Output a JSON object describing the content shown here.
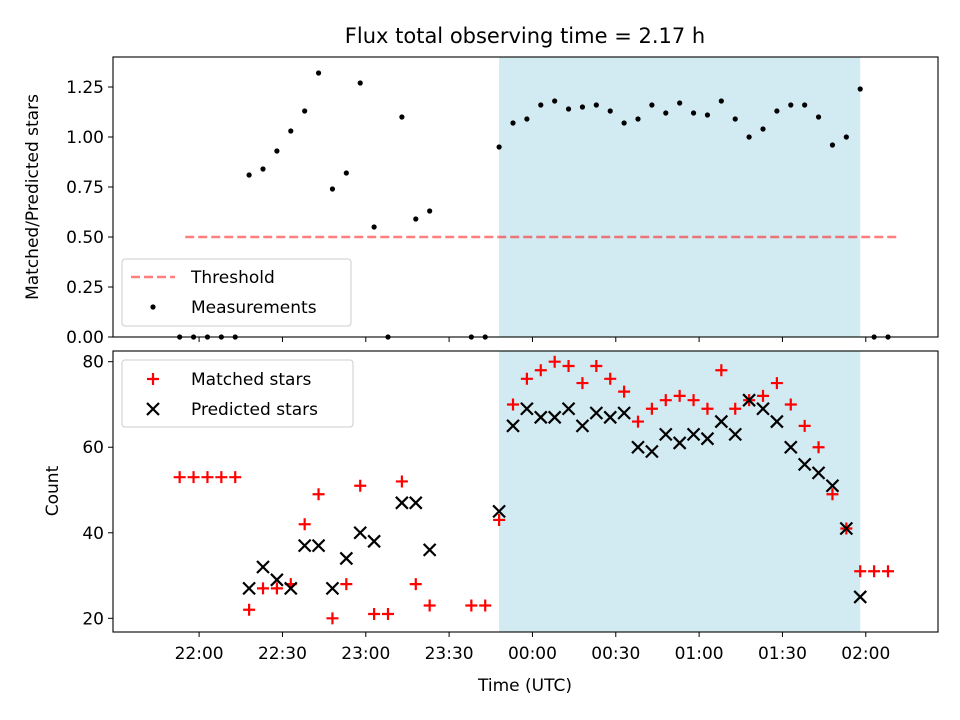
{
  "chart_data": [
    {
      "type": "scatter",
      "title": "Flux total observing time = 2.17 h",
      "xlabel": "",
      "ylabel": "Matched/Predicted stars",
      "ylim": [
        0,
        1.4
      ],
      "yticks": [
        "0.00",
        "0.25",
        "0.50",
        "0.75",
        "1.00",
        "1.25"
      ],
      "shaded_region": {
        "x_start": "23:48",
        "x_end": "01:58",
        "color": "#add8e6"
      },
      "threshold": {
        "name": "Threshold",
        "value": 0.5,
        "x_start": "21:55",
        "x_end": "02:12",
        "color": "#ff0000"
      },
      "legend": {
        "position": "bottom-left",
        "entries": [
          "Threshold",
          "Measurements"
        ]
      },
      "series": [
        {
          "name": "Measurements",
          "marker": "dot",
          "color": "#000000",
          "points": [
            [
              "21:53",
              0
            ],
            [
              "21:58",
              0
            ],
            [
              "22:03",
              0
            ],
            [
              "22:08",
              0
            ],
            [
              "22:13",
              0
            ],
            [
              "22:18",
              0.81
            ],
            [
              "22:23",
              0.84
            ],
            [
              "22:28",
              0.93
            ],
            [
              "22:33",
              1.03
            ],
            [
              "22:38",
              1.13
            ],
            [
              "22:43",
              1.32
            ],
            [
              "22:48",
              0.74
            ],
            [
              "22:53",
              0.82
            ],
            [
              "22:58",
              1.27
            ],
            [
              "23:03",
              0.55
            ],
            [
              "23:08",
              0
            ],
            [
              "23:13",
              1.1
            ],
            [
              "23:18",
              0.59
            ],
            [
              "23:23",
              0.63
            ],
            [
              "23:38",
              0
            ],
            [
              "23:43",
              0
            ],
            [
              "23:48",
              0.95
            ],
            [
              "23:53",
              1.07
            ],
            [
              "23:58",
              1.09
            ],
            [
              "00:03",
              1.16
            ],
            [
              "00:08",
              1.18
            ],
            [
              "00:13",
              1.14
            ],
            [
              "00:18",
              1.15
            ],
            [
              "00:23",
              1.16
            ],
            [
              "00:28",
              1.13
            ],
            [
              "00:33",
              1.07
            ],
            [
              "00:38",
              1.09
            ],
            [
              "00:43",
              1.16
            ],
            [
              "00:48",
              1.12
            ],
            [
              "00:53",
              1.17
            ],
            [
              "00:58",
              1.12
            ],
            [
              "01:03",
              1.11
            ],
            [
              "01:08",
              1.18
            ],
            [
              "01:13",
              1.09
            ],
            [
              "01:18",
              1.0
            ],
            [
              "01:23",
              1.04
            ],
            [
              "01:28",
              1.13
            ],
            [
              "01:33",
              1.16
            ],
            [
              "01:38",
              1.16
            ],
            [
              "01:43",
              1.1
            ],
            [
              "01:48",
              0.96
            ],
            [
              "01:53",
              1.0
            ],
            [
              "01:58",
              1.24
            ],
            [
              "02:03",
              0
            ],
            [
              "02:08",
              0
            ]
          ]
        }
      ]
    },
    {
      "type": "scatter",
      "title": "",
      "xlabel": "Time (UTC)",
      "ylabel": "Count",
      "ylim": [
        16.8,
        82.5
      ],
      "yticks": [
        "20",
        "40",
        "60",
        "80"
      ],
      "xticks": [
        "22:00",
        "22:30",
        "23:00",
        "23:30",
        "00:00",
        "00:30",
        "01:00",
        "01:30",
        "02:00"
      ],
      "shaded_region": {
        "x_start": "23:48",
        "x_end": "01:58",
        "color": "#add8e6"
      },
      "legend": {
        "position": "top-left",
        "entries": [
          "Matched stars",
          "Predicted stars"
        ]
      },
      "series": [
        {
          "name": "Matched stars",
          "marker": "plus",
          "color": "#ff0000",
          "points": [
            [
              "21:53",
              53
            ],
            [
              "21:58",
              53
            ],
            [
              "22:03",
              53
            ],
            [
              "22:08",
              53
            ],
            [
              "22:13",
              53
            ],
            [
              "22:18",
              22
            ],
            [
              "22:23",
              27
            ],
            [
              "22:28",
              27
            ],
            [
              "22:33",
              28
            ],
            [
              "22:38",
              42
            ],
            [
              "22:43",
              49
            ],
            [
              "22:48",
              20
            ],
            [
              "22:53",
              28
            ],
            [
              "22:58",
              51
            ],
            [
              "23:03",
              21
            ],
            [
              "23:08",
              21
            ],
            [
              "23:13",
              52
            ],
            [
              "23:18",
              28
            ],
            [
              "23:23",
              23
            ],
            [
              "23:38",
              23
            ],
            [
              "23:43",
              23
            ],
            [
              "23:48",
              43
            ],
            [
              "23:53",
              70
            ],
            [
              "23:58",
              76
            ],
            [
              "00:03",
              78
            ],
            [
              "00:08",
              80
            ],
            [
              "00:13",
              79
            ],
            [
              "00:18",
              75
            ],
            [
              "00:23",
              79
            ],
            [
              "00:28",
              76
            ],
            [
              "00:33",
              73
            ],
            [
              "00:38",
              66
            ],
            [
              "00:43",
              69
            ],
            [
              "00:48",
              71
            ],
            [
              "00:53",
              72
            ],
            [
              "00:58",
              71
            ],
            [
              "01:03",
              69
            ],
            [
              "01:08",
              78
            ],
            [
              "01:13",
              69
            ],
            [
              "01:18",
              71
            ],
            [
              "01:23",
              72
            ],
            [
              "01:28",
              75
            ],
            [
              "01:33",
              70
            ],
            [
              "01:38",
              65
            ],
            [
              "01:43",
              60
            ],
            [
              "01:48",
              49
            ],
            [
              "01:53",
              41
            ],
            [
              "01:58",
              31
            ],
            [
              "02:03",
              31
            ],
            [
              "02:08",
              31
            ]
          ]
        },
        {
          "name": "Predicted stars",
          "marker": "x",
          "color": "#000000",
          "points": [
            [
              "22:18",
              27
            ],
            [
              "22:23",
              32
            ],
            [
              "22:28",
              29
            ],
            [
              "22:33",
              27
            ],
            [
              "22:38",
              37
            ],
            [
              "22:43",
              37
            ],
            [
              "22:48",
              27
            ],
            [
              "22:53",
              34
            ],
            [
              "22:58",
              40
            ],
            [
              "23:03",
              38
            ],
            [
              "23:13",
              47
            ],
            [
              "23:18",
              47
            ],
            [
              "23:23",
              36
            ],
            [
              "23:48",
              45
            ],
            [
              "23:53",
              65
            ],
            [
              "23:58",
              69
            ],
            [
              "00:03",
              67
            ],
            [
              "00:08",
              67
            ],
            [
              "00:13",
              69
            ],
            [
              "00:18",
              65
            ],
            [
              "00:23",
              68
            ],
            [
              "00:28",
              67
            ],
            [
              "00:33",
              68
            ],
            [
              "00:38",
              60
            ],
            [
              "00:43",
              59
            ],
            [
              "00:48",
              63
            ],
            [
              "00:53",
              61
            ],
            [
              "00:58",
              63
            ],
            [
              "01:03",
              62
            ],
            [
              "01:08",
              66
            ],
            [
              "01:13",
              63
            ],
            [
              "01:18",
              71
            ],
            [
              "01:23",
              69
            ],
            [
              "01:28",
              66
            ],
            [
              "01:33",
              60
            ],
            [
              "01:38",
              56
            ],
            [
              "01:43",
              54
            ],
            [
              "01:48",
              51
            ],
            [
              "01:53",
              41
            ],
            [
              "01:58",
              25
            ]
          ]
        }
      ]
    }
  ]
}
